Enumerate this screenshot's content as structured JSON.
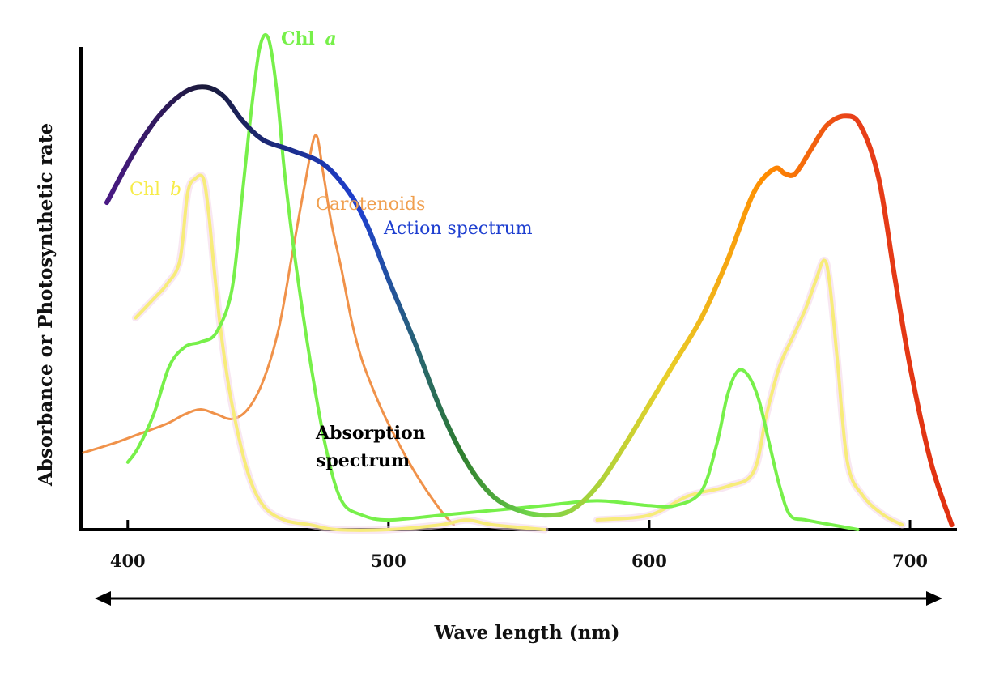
{
  "chart_data": {
    "type": "line",
    "title": "",
    "xlabel": "Wave length (nm)",
    "ylabel": "Absorbance or Photosynthetic rate",
    "xlim": [
      383,
      718
    ],
    "ylim": [
      0,
      100
    ],
    "x_ticks": [
      400,
      500,
      600,
      700
    ],
    "grid": false,
    "series": [
      {
        "name": "Action spectrum",
        "label": "Action spectrum",
        "colors": [
          "#4b1a87",
          "#1a1a3a",
          "#1e3fd0",
          "#2e7d2e",
          "#e8d02a",
          "#ff8c00",
          "#e8401a"
        ],
        "x": [
          392,
          402,
          412,
          422,
          430,
          437,
          444,
          452,
          462,
          475,
          485,
          492,
          500,
          510,
          520,
          530,
          540,
          550,
          560,
          570,
          580,
          590,
          600,
          610,
          620,
          630,
          640,
          648,
          652,
          656,
          662,
          668,
          675,
          681,
          688,
          694,
          700,
          708,
          716
        ],
        "y": [
          68,
          78,
          86,
          91,
          92,
          90,
          85,
          81,
          79,
          76,
          70,
          63,
          52,
          39,
          25,
          14,
          7,
          4,
          3,
          4,
          9,
          17,
          26,
          35,
          44,
          56,
          70,
          75,
          74,
          74,
          79,
          84,
          86,
          84,
          73,
          53,
          34,
          14,
          1
        ]
      },
      {
        "name": "Chl a",
        "label": "Chl",
        "label_italic": "a",
        "color": "#77f04a",
        "x": [
          400,
          404,
          410,
          416,
          422,
          428,
          434,
          440,
          444,
          448,
          451,
          454,
          457,
          460,
          464,
          470,
          476,
          482,
          490,
          500,
          520,
          540,
          560,
          580,
          600,
          610,
          620,
          626,
          630,
          634,
          638,
          642,
          646,
          650,
          654,
          660,
          670,
          680
        ],
        "y": [
          14,
          17,
          24,
          34,
          38,
          39,
          41,
          50,
          70,
          90,
          101,
          102,
          92,
          75,
          57,
          35,
          17,
          6,
          3,
          2,
          3,
          4,
          5,
          6,
          5,
          5,
          8,
          18,
          28,
          33,
          32,
          27,
          18,
          9,
          3,
          2,
          1,
          0
        ]
      },
      {
        "name": "Chl b",
        "label": "Chl",
        "label_italic": "b",
        "color": "#f7ec7a",
        "x": [
          403,
          410,
          415,
          420,
          423,
          426,
          429,
          431,
          433,
          436,
          440,
          446,
          452,
          460,
          470,
          480,
          500,
          520,
          530,
          540,
          560,
          580,
          600,
          615,
          630,
          640,
          645,
          650,
          655,
          660,
          664,
          667,
          669,
          672,
          676,
          682,
          690,
          697
        ],
        "y": [
          44,
          48,
          51,
          56,
          70,
          73,
          73,
          66,
          55,
          40,
          26,
          12,
          5,
          2,
          1,
          0,
          0,
          1,
          2,
          1,
          0,
          2,
          3,
          7,
          9,
          12,
          24,
          34,
          40,
          46,
          52,
          56,
          52,
          36,
          14,
          7,
          3,
          1
        ],
        "style": "partial"
      },
      {
        "name": "Carotenoids",
        "label": "Carotenoids",
        "color": "#f0924a",
        "x": [
          383,
          395,
          405,
          415,
          422,
          428,
          434,
          440,
          446,
          452,
          458,
          463,
          468,
          472,
          475,
          478,
          482,
          486,
          490,
          495,
          500,
          510,
          520,
          525
        ],
        "y": [
          16,
          18,
          20,
          22,
          24,
          25,
          24,
          23,
          25,
          31,
          42,
          57,
          72,
          82,
          74,
          64,
          54,
          43,
          35,
          28,
          22,
          12,
          4,
          1
        ]
      }
    ],
    "annotations": [
      {
        "text": "Absorption",
        "color": "#3a8a1a"
      },
      {
        "text": "spectrum",
        "color": "#3a8a1a"
      }
    ]
  }
}
